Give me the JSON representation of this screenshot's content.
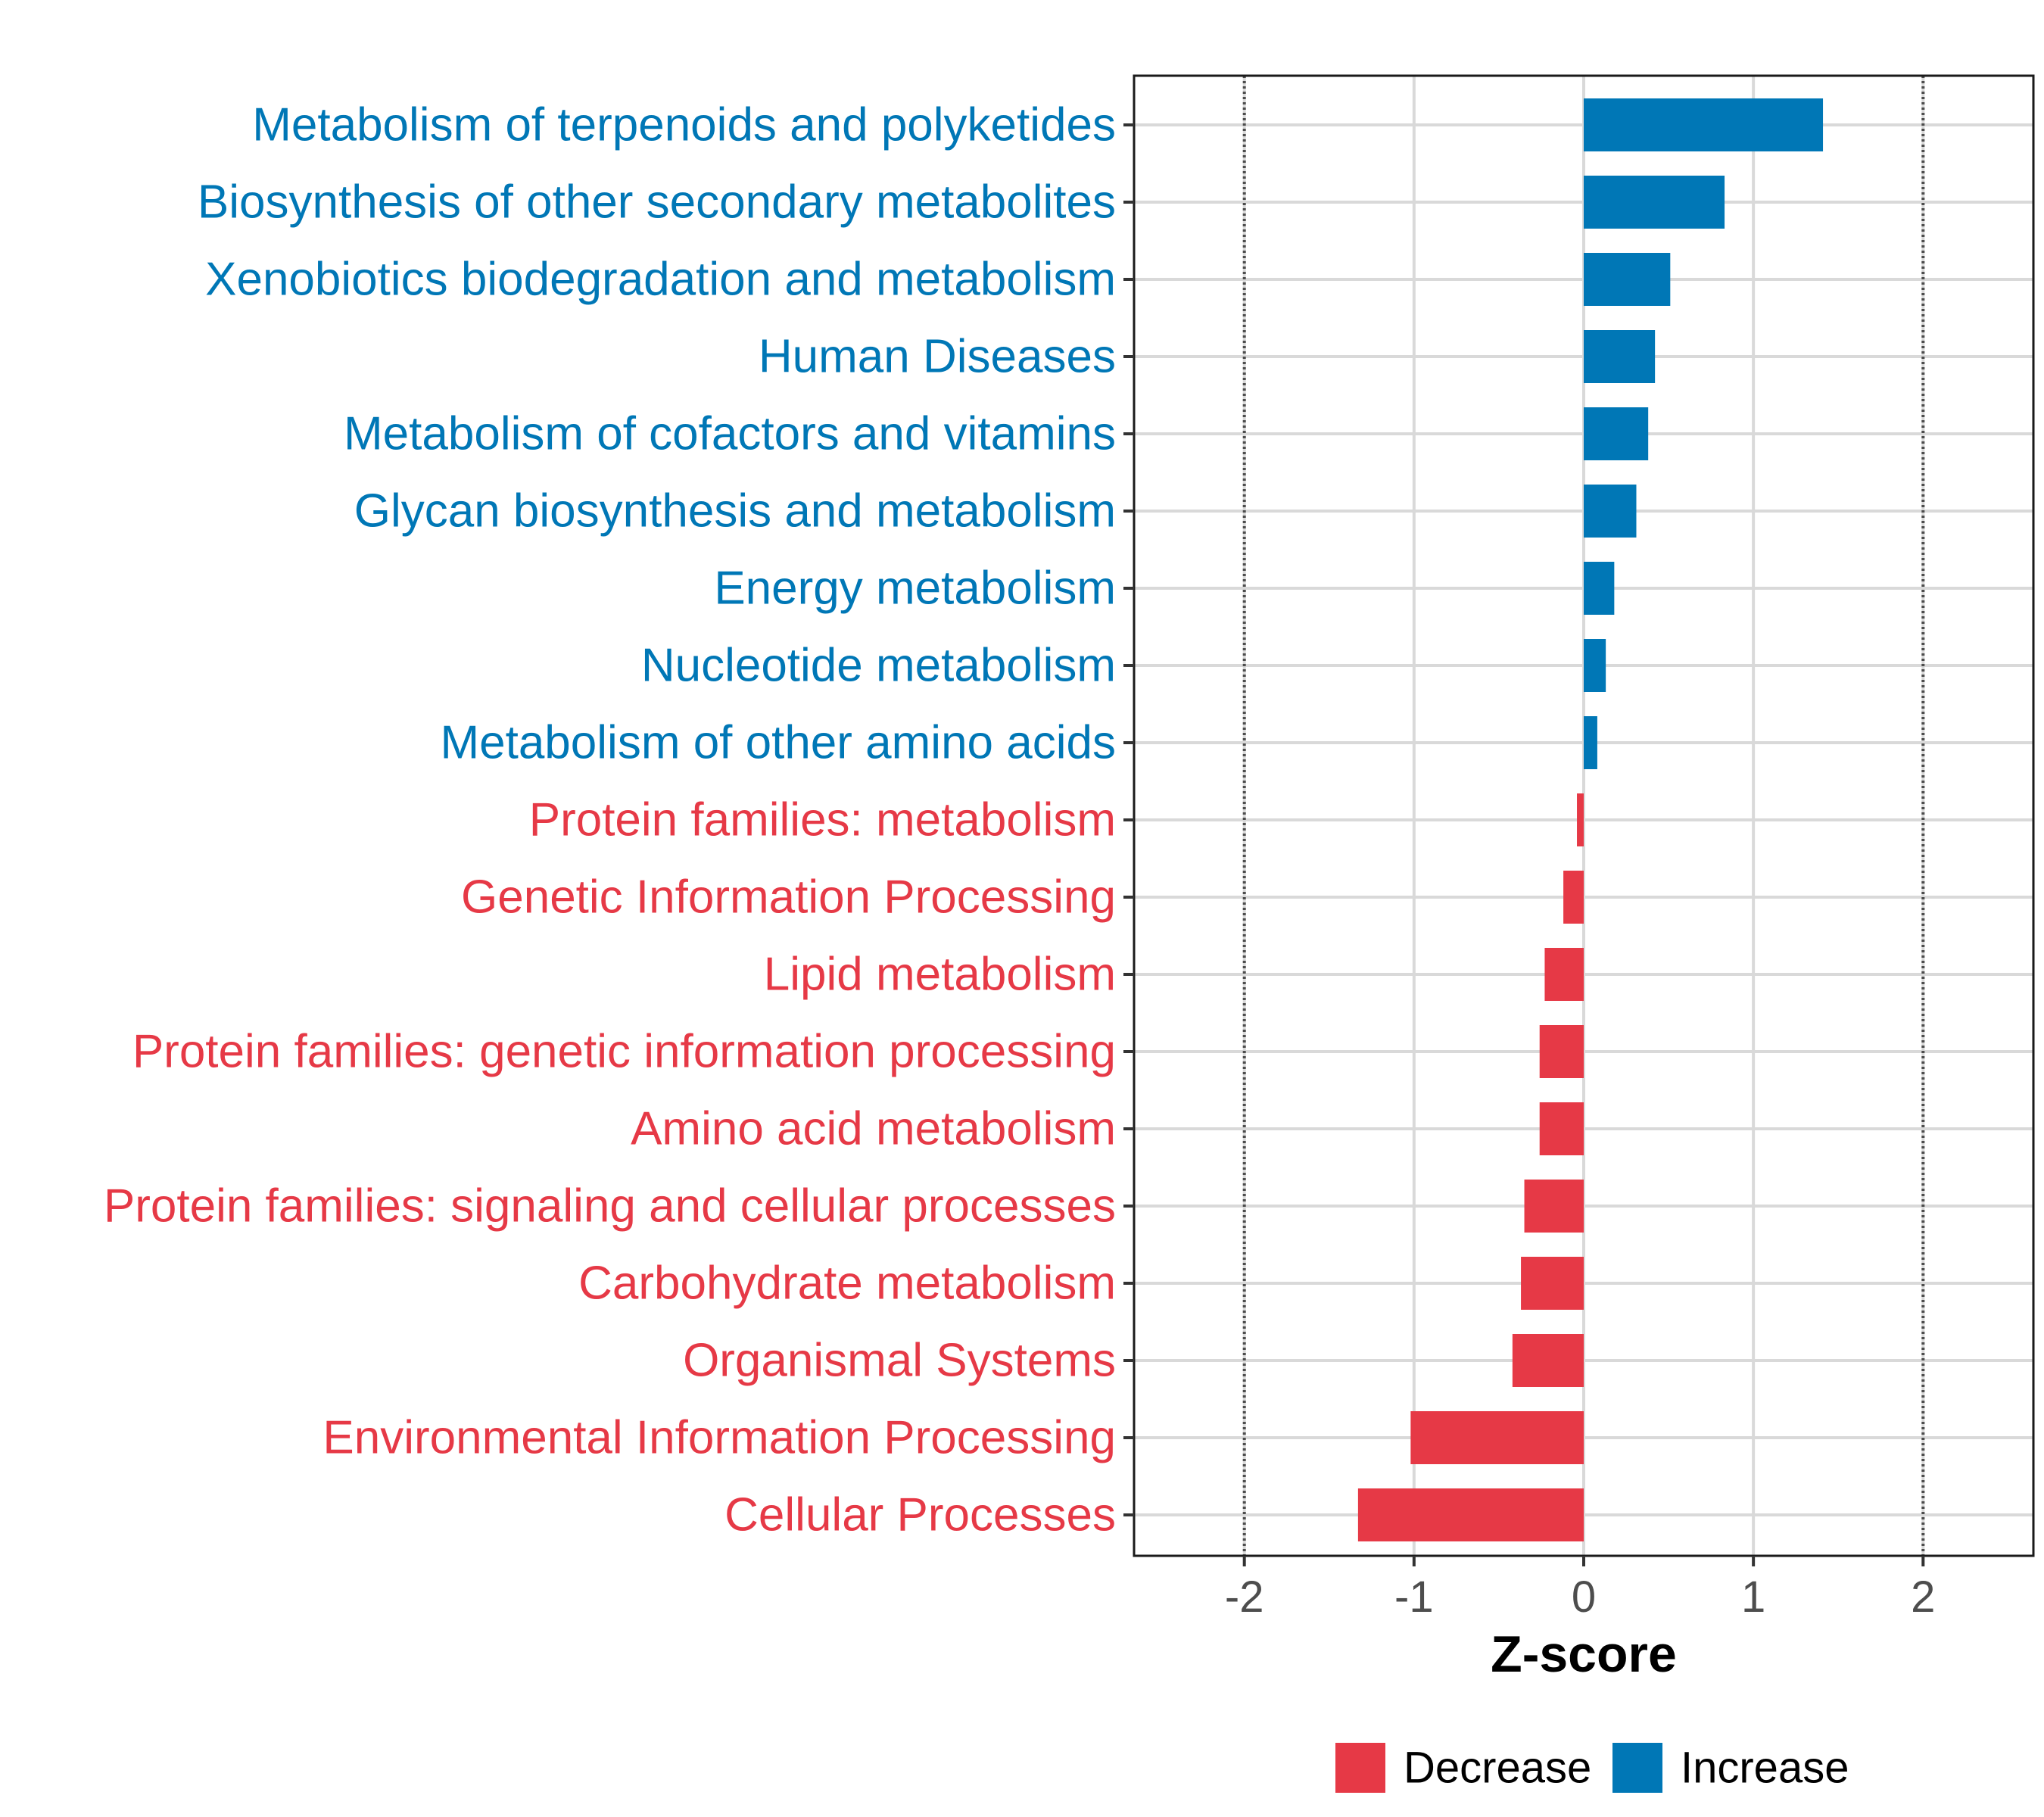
{
  "colors": {
    "increase": "#0077b6",
    "decrease": "#e63946",
    "grid": "#d9d9d9",
    "refline": "#4d4d4d",
    "panel_border": "#1a1a1a"
  },
  "chart_data": {
    "type": "bar",
    "orientation": "horizontal",
    "title": "",
    "xlabel": "Z-score",
    "ylabel": "",
    "xlim": [
      -2.65,
      2.65
    ],
    "xticks": [
      -2,
      -1,
      0,
      1,
      2
    ],
    "xtick_labels": [
      "-2",
      "-1",
      "0",
      "1",
      "2"
    ],
    "reference_lines": [
      -2,
      2
    ],
    "grid": true,
    "legend_position": "bottom",
    "categories": [
      "Metabolism of terpenoids and polyketides",
      "Biosynthesis of other secondary metabolites",
      "Xenobiotics biodegradation and metabolism",
      "Human Diseases",
      "Metabolism of cofactors and vitamins",
      "Glycan biosynthesis and metabolism",
      "Energy metabolism",
      "Nucleotide metabolism",
      "Metabolism of other amino acids",
      "Protein families: metabolism",
      "Genetic Information Processing",
      "Lipid metabolism",
      "Protein families: genetic information processing",
      "Amino acid metabolism",
      "Protein families: signaling and cellular processes",
      "Carbohydrate metabolism",
      "Organismal Systems",
      "Environmental Information Processing",
      "Cellular Processes"
    ],
    "values": [
      1.41,
      0.83,
      0.51,
      0.42,
      0.38,
      0.31,
      0.18,
      0.13,
      0.08,
      -0.04,
      -0.12,
      -0.23,
      -0.26,
      -0.26,
      -0.35,
      -0.37,
      -0.42,
      -1.02,
      -1.33
    ],
    "groups": [
      "Increase",
      "Increase",
      "Increase",
      "Increase",
      "Increase",
      "Increase",
      "Increase",
      "Increase",
      "Increase",
      "Decrease",
      "Decrease",
      "Decrease",
      "Decrease",
      "Decrease",
      "Decrease",
      "Decrease",
      "Decrease",
      "Decrease",
      "Decrease"
    ],
    "legend": [
      {
        "label": "Decrease",
        "color": "#e63946"
      },
      {
        "label": "Increase",
        "color": "#0077b6"
      }
    ]
  }
}
